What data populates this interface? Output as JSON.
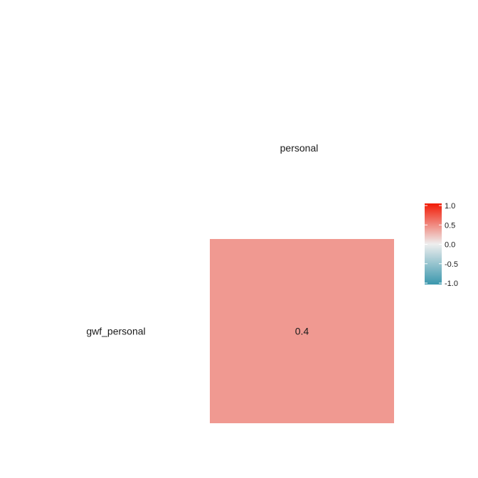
{
  "chart_data": {
    "type": "heatmap",
    "title": "",
    "rows": [
      "gwf_personal"
    ],
    "columns": [
      "personal"
    ],
    "values": [
      [
        0.4
      ]
    ],
    "cell_labels": [
      [
        "0.4"
      ]
    ],
    "colorscale": {
      "low_color": "#3a97ad",
      "mid_color": "#eeeeee",
      "high_color": "#f21a05",
      "range": [
        -1.0,
        1.0
      ],
      "ticks": [
        1.0,
        0.5,
        0.0,
        -0.5,
        -1.0
      ],
      "tick_labels": [
        "1.0",
        "0.5",
        "0.0",
        "-0.5",
        "-1.0"
      ]
    },
    "legend_position": "right"
  }
}
